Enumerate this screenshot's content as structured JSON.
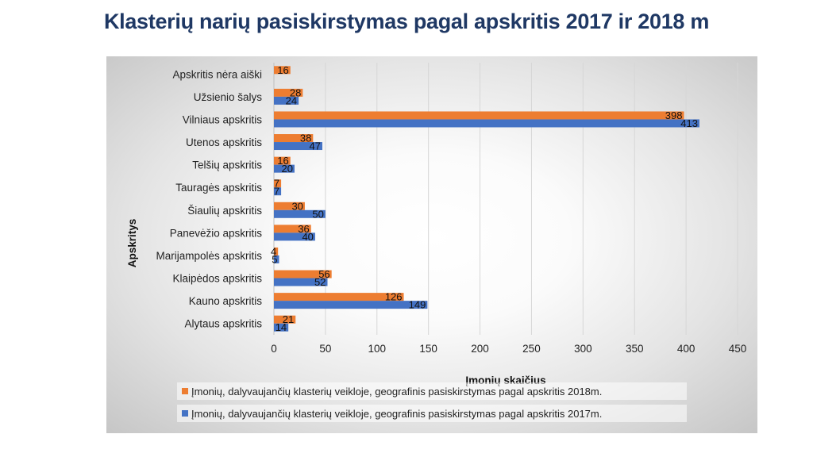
{
  "title": "Klasterių narių pasiskirstymas pagal apskritis 2017 ir 2018 m",
  "chart_data": {
    "type": "bar",
    "orientation": "horizontal",
    "categories": [
      "Apskritis nėra aiški",
      "Užsienio šalys",
      "Vilniaus apskritis",
      "Utenos apskritis",
      "Telšių apskritis",
      "Tauragės apskritis",
      "Šiaulių apskritis",
      "Panevėžio apskritis",
      "Marijampolės apskritis",
      "Klaipėdos apskritis",
      "Kauno apskritis",
      "Alytaus apskritis"
    ],
    "series": [
      {
        "name": "Įmonių, dalyvaujančių klasterių veikloje, geografinis pasiskirstymas pagal apskritis 2018m.",
        "color": "#ed7d31",
        "values": [
          16,
          28,
          398,
          38,
          16,
          7,
          30,
          36,
          4,
          56,
          126,
          21
        ]
      },
      {
        "name": "Įmonių, dalyvaujančių klasterių veikloje, geografinis pasiskirstymas pagal apskritis 2017m.",
        "color": "#4472c4",
        "values": [
          null,
          24,
          413,
          47,
          20,
          7,
          50,
          40,
          5,
          52,
          149,
          14
        ]
      }
    ],
    "xlabel": "Įmonių skaičius",
    "ylabel": "Apskritys",
    "xlim": [
      0,
      450
    ],
    "xticks": [
      0,
      50,
      100,
      150,
      200,
      250,
      300,
      350,
      400,
      450
    ],
    "grid": true,
    "legend": "bottom"
  }
}
